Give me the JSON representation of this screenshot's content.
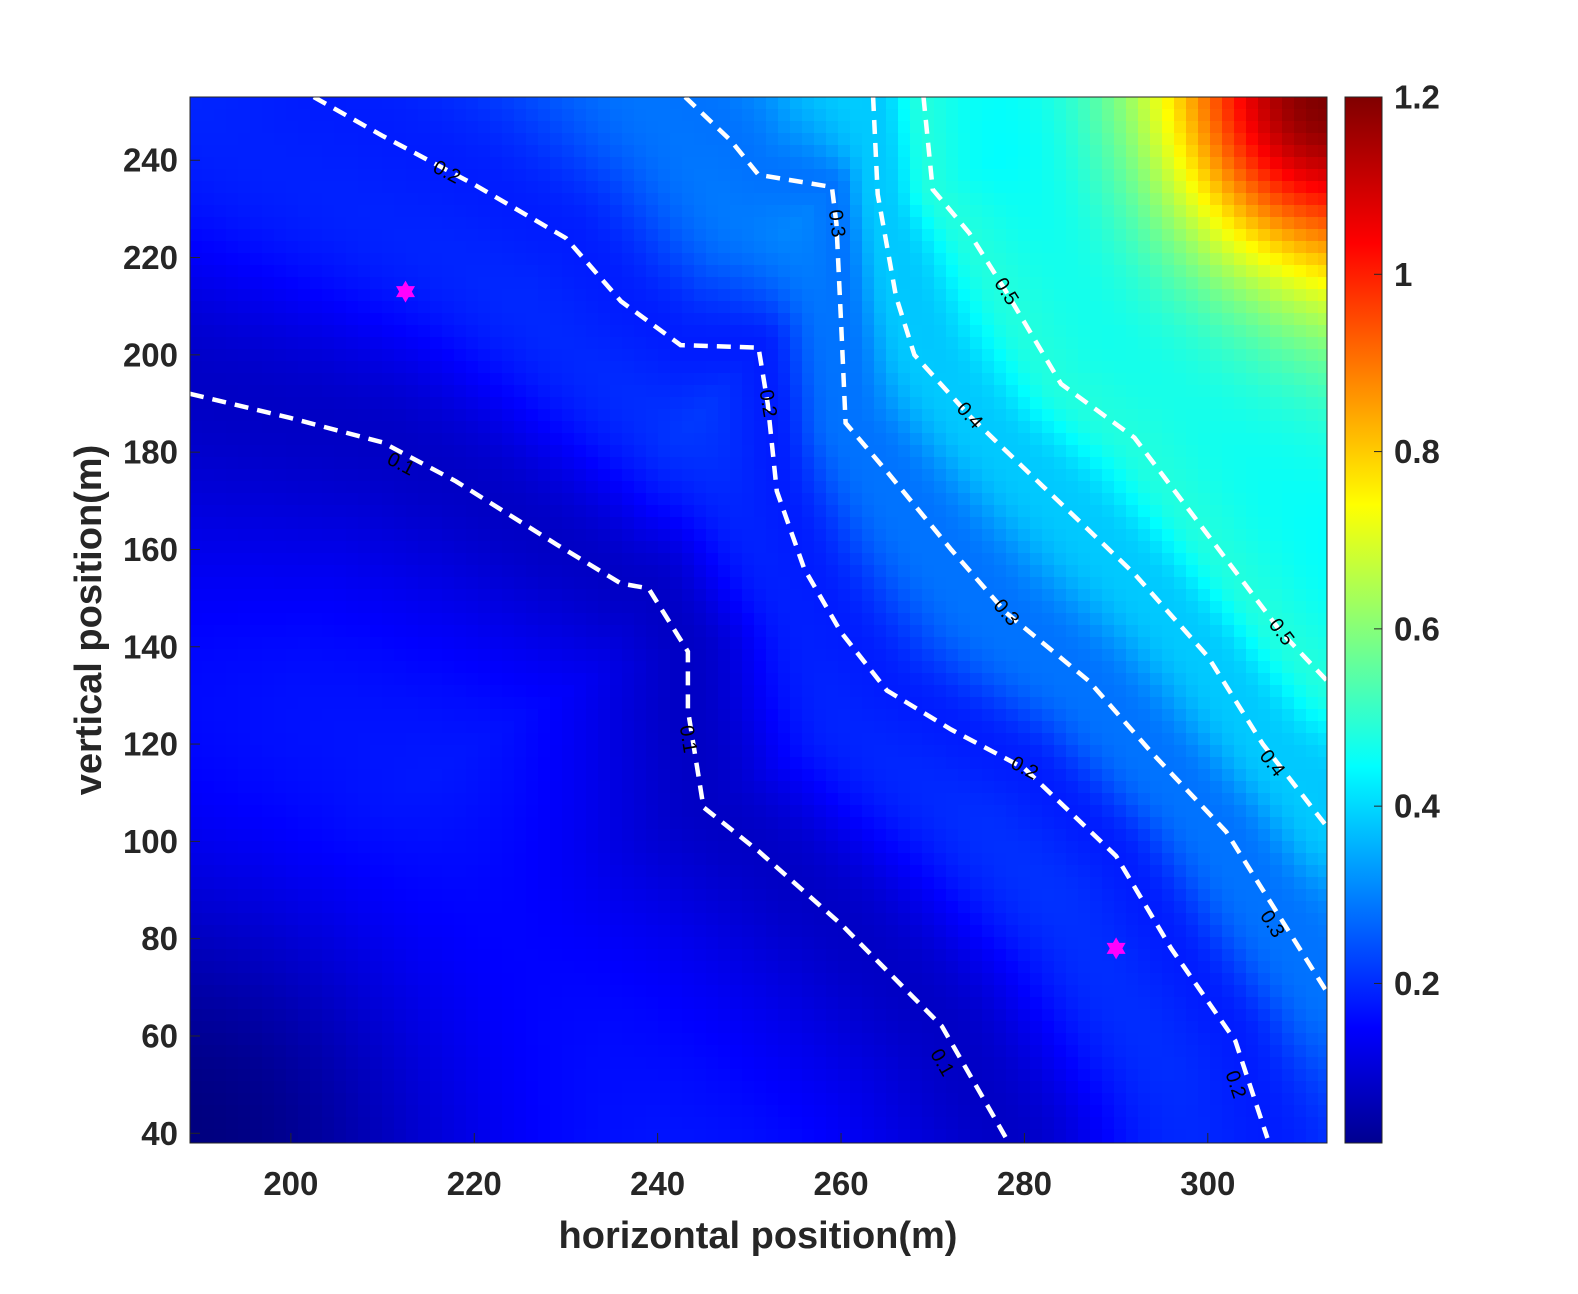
{
  "chart_data": {
    "type": "heatmap",
    "subtype": "filled-contour",
    "title": "",
    "xlabel": "horizontal position(m)",
    "ylabel": "vertical position(m)",
    "xlim": [
      189,
      313
    ],
    "ylim": [
      38,
      253
    ],
    "xticks": [
      200,
      220,
      240,
      260,
      280,
      300
    ],
    "yticks": [
      40,
      60,
      80,
      100,
      120,
      140,
      160,
      180,
      200,
      220,
      240
    ],
    "colormap": "jet",
    "colorbar": {
      "placement": "right",
      "range": [
        0.02,
        1.2
      ],
      "ticks": [
        0.2,
        0.4,
        0.6,
        0.8,
        1,
        1.2
      ],
      "tick_labels": [
        "0.2",
        "0.4",
        "0.6",
        "0.8",
        "1",
        "1.2"
      ]
    },
    "contour_lines": {
      "style": "dashed",
      "color": "#ffffff",
      "levels": [
        {
          "level": 0.1,
          "labels": [
            {
              "text": "0.1",
              "at": [
                212,
                177.5
              ]
            },
            {
              "text": "0.1",
              "at": [
                243.3,
                121
              ]
            },
            {
              "text": "0.1",
              "at": [
                271,
                54.5
              ]
            }
          ],
          "points": [
            [
              189,
              192
            ],
            [
              200,
              187
            ],
            [
              210,
              182
            ],
            [
              218,
              174
            ],
            [
              229,
              161
            ],
            [
              236,
              153
            ],
            [
              239,
              152
            ],
            [
              243.3,
              139
            ],
            [
              243.3,
              127
            ],
            [
              245,
              107
            ],
            [
              251,
              98
            ],
            [
              260,
              83
            ],
            [
              271,
              62
            ],
            [
              278,
              39
            ]
          ]
        },
        {
          "level": 0.2,
          "labels": [
            {
              "text": "0.2",
              "at": [
                217,
                237.5
              ]
            },
            {
              "text": "0.2",
              "at": [
                252,
                190
              ]
            },
            {
              "text": "0.2",
              "at": [
                280,
                115
              ]
            },
            {
              "text": "0.2",
              "at": [
                303,
                50
              ]
            }
          ],
          "points": [
            [
              202.5,
              253
            ],
            [
              210,
              245
            ],
            [
              220,
              235
            ],
            [
              230,
              224
            ],
            [
              236,
              211
            ],
            [
              242.5,
              202
            ],
            [
              251,
              201.5
            ],
            [
              252,
              190
            ],
            [
              253,
              172
            ],
            [
              256,
              156
            ],
            [
              260,
              143
            ],
            [
              265,
              131
            ],
            [
              272,
              123
            ],
            [
              280,
              115
            ],
            [
              290,
              97
            ],
            [
              296,
              78
            ],
            [
              303,
              59
            ],
            [
              306.5,
              39
            ]
          ]
        },
        {
          "level": 0.3,
          "labels": [
            {
              "text": "0.3",
              "at": [
                259.5,
                227
              ]
            },
            {
              "text": "0.3",
              "at": [
                278,
                147
              ]
            },
            {
              "text": "0.3",
              "at": [
                307,
                83
              ]
            }
          ],
          "points": [
            [
              243,
              253
            ],
            [
              248,
              244
            ],
            [
              251,
              237
            ],
            [
              259,
              234.5
            ],
            [
              259.5,
              227
            ],
            [
              260,
              207
            ],
            [
              260.5,
              186
            ],
            [
              265,
              176
            ],
            [
              272,
              160
            ],
            [
              278,
              147
            ],
            [
              287,
              133
            ],
            [
              294,
              118
            ],
            [
              302,
              102
            ],
            [
              307,
              87
            ],
            [
              313,
              69
            ]
          ]
        },
        {
          "level": 0.4,
          "labels": [
            {
              "text": "0.4",
              "at": [
                274,
                187.5
              ]
            },
            {
              "text": "0.4",
              "at": [
                307,
                116
              ]
            }
          ],
          "points": [
            [
              263.5,
              253
            ],
            [
              264,
              233
            ],
            [
              266,
              212
            ],
            [
              268,
              200
            ],
            [
              274,
              187.5
            ],
            [
              282,
              173
            ],
            [
              292,
              155
            ],
            [
              300,
              138
            ],
            [
              306,
              120
            ],
            [
              313,
              103
            ]
          ]
        },
        {
          "level": 0.5,
          "labels": [
            {
              "text": "0.5",
              "at": [
                278,
                213
              ]
            },
            {
              "text": "0.5",
              "at": [
                308,
                143
              ]
            }
          ],
          "points": [
            [
              269,
              253
            ],
            [
              270,
              234
            ],
            [
              274,
              225
            ],
            [
              278,
              213
            ],
            [
              284,
              194
            ],
            [
              292,
              183
            ],
            [
              300,
              163
            ],
            [
              308,
              143
            ],
            [
              313,
              133
            ]
          ]
        }
      ]
    },
    "markers": [
      {
        "symbol": "hexagram",
        "color": "#ff00ff",
        "x": 212.5,
        "y": 213
      },
      {
        "symbol": "hexagram",
        "color": "#ff00ff",
        "x": 290,
        "y": 78
      }
    ]
  }
}
